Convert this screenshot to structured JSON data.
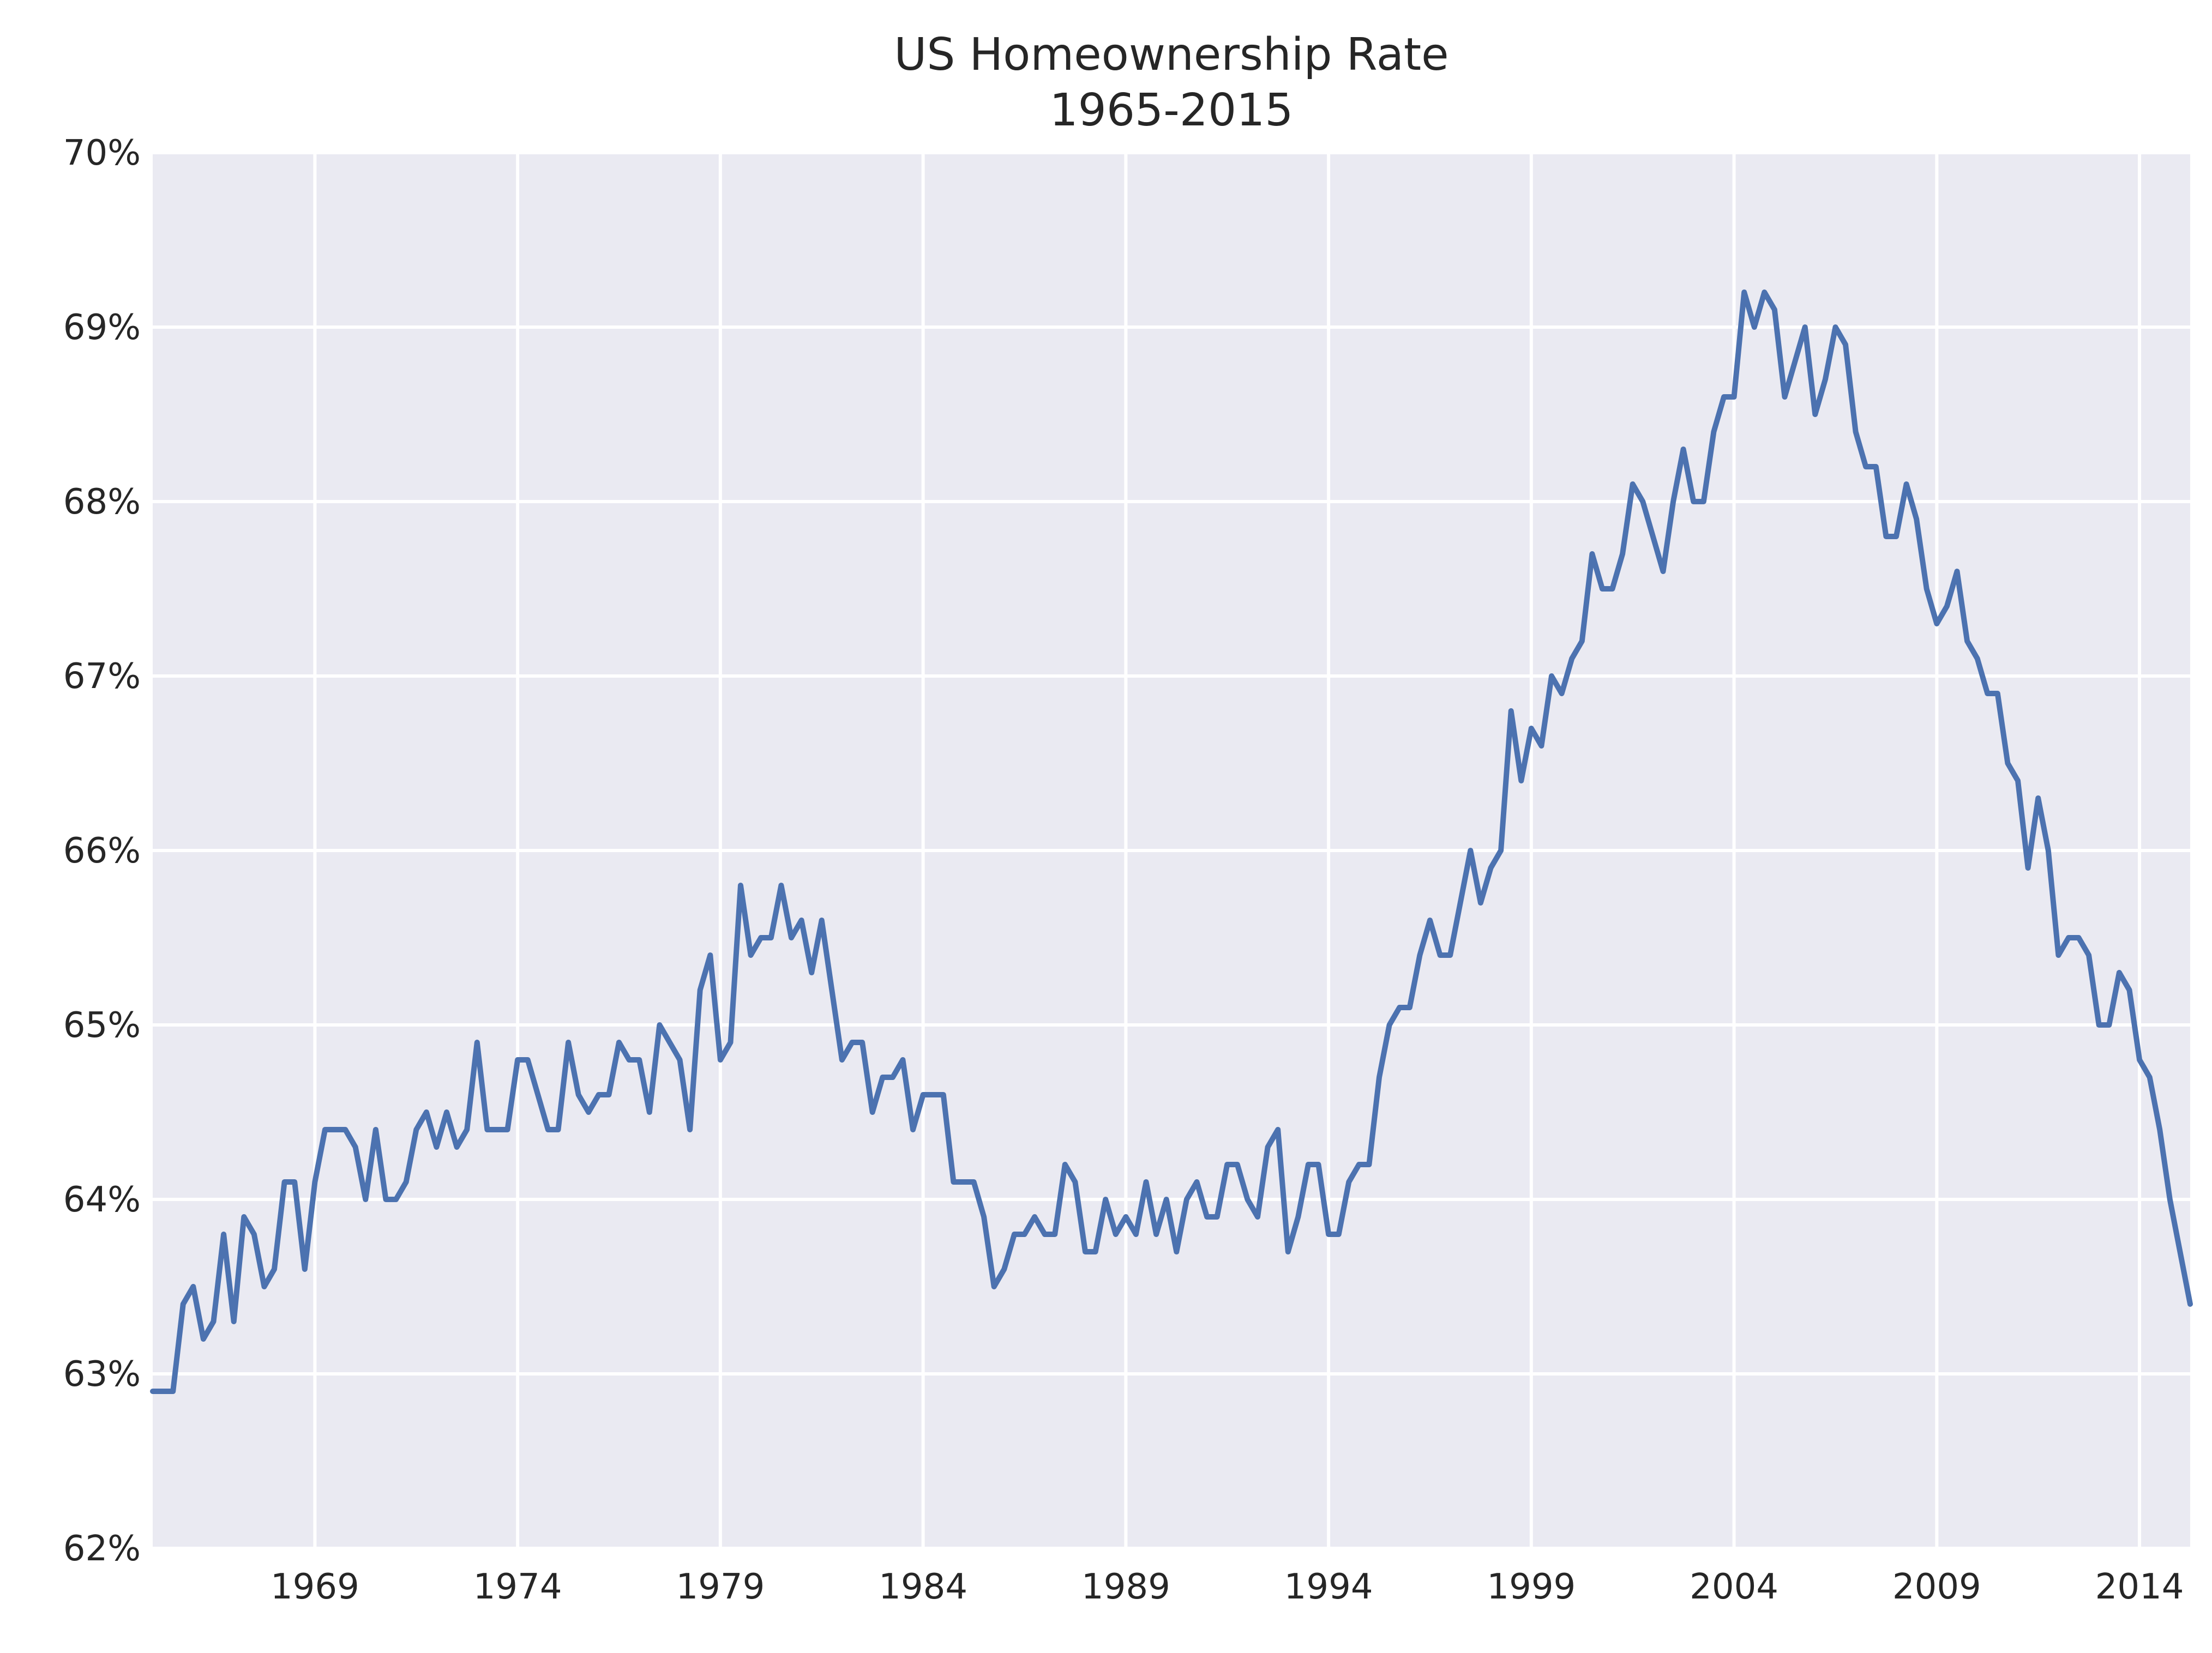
{
  "chart_data": {
    "type": "line",
    "title": "US Homeownership Rate",
    "subtitle": "1965-2015",
    "xlabel": "",
    "ylabel": "",
    "x_ticks": [
      "1969",
      "1974",
      "1979",
      "1984",
      "1989",
      "1994",
      "1999",
      "2004",
      "2009",
      "2014"
    ],
    "y_ticks": [
      "62%",
      "63%",
      "64%",
      "65%",
      "66%",
      "67%",
      "68%",
      "69%",
      "70%"
    ],
    "ylim": [
      62,
      70
    ],
    "xlim": [
      1965.0,
      2015.25
    ],
    "grid": true,
    "x_start": 1965.0,
    "x_step": 0.25,
    "x_unit": "year (quarterly)",
    "series": [
      {
        "name": "",
        "color": "#4c72b0",
        "values": [
          62.9,
          62.9,
          62.9,
          63.4,
          63.5,
          63.2,
          63.3,
          63.8,
          63.3,
          63.9,
          63.8,
          63.5,
          63.6,
          64.1,
          64.1,
          63.6,
          64.1,
          64.4,
          64.4,
          64.4,
          64.3,
          64.0,
          64.4,
          64.0,
          64.0,
          64.1,
          64.4,
          64.5,
          64.3,
          64.5,
          64.3,
          64.4,
          64.9,
          64.4,
          64.4,
          64.4,
          64.8,
          64.8,
          64.6,
          64.4,
          64.4,
          64.9,
          64.6,
          64.5,
          64.6,
          64.6,
          64.9,
          64.8,
          64.8,
          64.5,
          65.0,
          64.9,
          64.8,
          64.4,
          65.2,
          65.4,
          64.8,
          64.9,
          65.8,
          65.4,
          65.5,
          65.5,
          65.8,
          65.5,
          65.6,
          65.3,
          65.6,
          65.2,
          64.8,
          64.9,
          64.9,
          64.5,
          64.7,
          64.7,
          64.8,
          64.4,
          64.6,
          64.6,
          64.6,
          64.1,
          64.1,
          64.1,
          63.9,
          63.5,
          63.6,
          63.8,
          63.8,
          63.9,
          63.8,
          63.8,
          64.2,
          64.1,
          63.7,
          63.7,
          64.0,
          63.8,
          63.9,
          63.8,
          64.1,
          63.8,
          64.0,
          63.7,
          64.0,
          64.1,
          63.9,
          63.9,
          64.2,
          64.2,
          64.0,
          63.9,
          64.3,
          64.4,
          63.7,
          63.9,
          64.2,
          64.2,
          63.8,
          63.8,
          64.1,
          64.2,
          64.2,
          64.7,
          65.0,
          65.1,
          65.1,
          65.4,
          65.6,
          65.4,
          65.4,
          65.7,
          66.0,
          65.7,
          65.9,
          66.0,
          66.8,
          66.4,
          66.7,
          66.6,
          67.0,
          66.9,
          67.1,
          67.2,
          67.7,
          67.5,
          67.5,
          67.7,
          68.1,
          68.0,
          67.8,
          67.6,
          68.0,
          68.3,
          68.0,
          68.0,
          68.4,
          68.6,
          68.6,
          69.2,
          69.0,
          69.2,
          69.1,
          68.6,
          68.8,
          69.0,
          68.5,
          68.7,
          69.0,
          68.9,
          68.4,
          68.2,
          68.2,
          67.8,
          67.8,
          68.1,
          67.9,
          67.5,
          67.3,
          67.4,
          67.6,
          67.2,
          67.1,
          66.9,
          66.9,
          66.5,
          66.4,
          65.9,
          66.3,
          66.0,
          65.4,
          65.5,
          65.5,
          65.4,
          65.0,
          65.0,
          65.3,
          65.2,
          64.8,
          64.7,
          64.4,
          64.0,
          63.7,
          63.4
        ]
      }
    ]
  },
  "colors": {
    "plot_background": "#eaeaf2",
    "grid": "#ffffff",
    "line": "#4c72b0",
    "text": "#262626"
  }
}
